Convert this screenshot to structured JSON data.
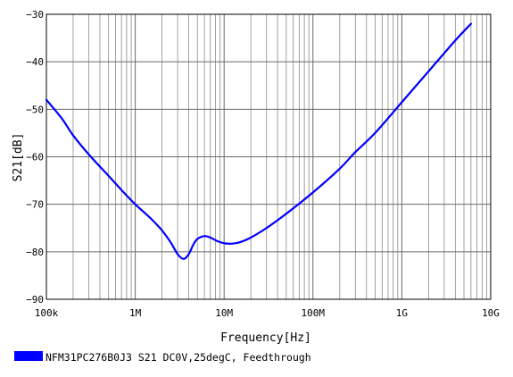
{
  "chart_data": {
    "type": "line",
    "xlabel": "Frequency[Hz]",
    "ylabel": "S21[dB]",
    "x_scale": "log",
    "xlim": [
      100000,
      10000000000
    ],
    "ylim": [
      -90,
      -30
    ],
    "grid": true,
    "legend_position": "bottom-left",
    "x_ticks": [
      {
        "value": 100000,
        "label": "100k"
      },
      {
        "value": 1000000,
        "label": "1M"
      },
      {
        "value": 10000000,
        "label": "10M"
      },
      {
        "value": 100000000,
        "label": "100M"
      },
      {
        "value": 1000000000,
        "label": "1G"
      },
      {
        "value": 10000000000,
        "label": "10G"
      }
    ],
    "y_ticks": [
      {
        "value": -30,
        "label": "−30"
      },
      {
        "value": -40,
        "label": "−40"
      },
      {
        "value": -50,
        "label": "−50"
      },
      {
        "value": -60,
        "label": "−60"
      },
      {
        "value": -70,
        "label": "−70"
      },
      {
        "value": -80,
        "label": "−80"
      },
      {
        "value": -90,
        "label": "−90"
      }
    ],
    "series": [
      {
        "name": "NFM31PC276B0J3 S21 DC0V,25degC, Feedthrough",
        "color": "#0000ff",
        "points": [
          [
            100000,
            -48.0
          ],
          [
            150000,
            -52.0
          ],
          [
            200000,
            -55.5
          ],
          [
            300000,
            -59.5
          ],
          [
            500000,
            -64.0
          ],
          [
            700000,
            -67.0
          ],
          [
            1000000,
            -70.0
          ],
          [
            1500000,
            -73.0
          ],
          [
            2000000,
            -75.5
          ],
          [
            2500000,
            -78.0
          ],
          [
            3000000,
            -80.5
          ],
          [
            3500000,
            -81.5
          ],
          [
            4000000,
            -80.5
          ],
          [
            4500000,
            -78.5
          ],
          [
            5000000,
            -77.3
          ],
          [
            6000000,
            -76.7
          ],
          [
            7000000,
            -77.0
          ],
          [
            8500000,
            -77.8
          ],
          [
            10000000,
            -78.2
          ],
          [
            12000000,
            -78.3
          ],
          [
            15000000,
            -78.0
          ],
          [
            20000000,
            -77.0
          ],
          [
            30000000,
            -75.0
          ],
          [
            50000000,
            -72.0
          ],
          [
            100000000,
            -67.5
          ],
          [
            200000000,
            -62.5
          ],
          [
            300000000,
            -59.0
          ],
          [
            500000000,
            -55.0
          ],
          [
            1000000000,
            -48.5
          ],
          [
            2000000000,
            -42.0
          ],
          [
            4000000000,
            -35.5
          ],
          [
            6000000000,
            -32.0
          ]
        ]
      }
    ]
  }
}
